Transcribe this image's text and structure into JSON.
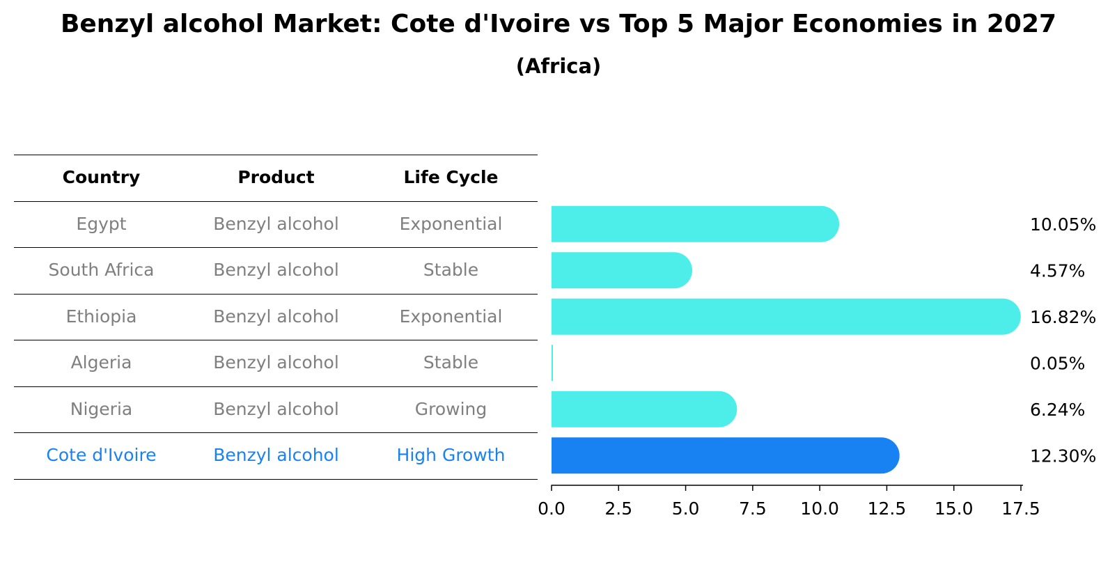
{
  "title": "Benzyl alcohol Market: Cote d'Ivoire vs Top 5 Major Economies in 2027",
  "subtitle": "(Africa)",
  "table": {
    "headers": [
      "Country",
      "Product",
      "Life Cycle"
    ],
    "rows": [
      {
        "country": "Egypt",
        "product": "Benzyl alcohol",
        "life_cycle": "Exponential",
        "highlight": false
      },
      {
        "country": "South Africa",
        "product": "Benzyl alcohol",
        "life_cycle": "Stable",
        "highlight": false
      },
      {
        "country": "Ethiopia",
        "product": "Benzyl alcohol",
        "life_cycle": "Exponential",
        "highlight": false
      },
      {
        "country": "Algeria",
        "product": "Benzyl alcohol",
        "life_cycle": "Stable",
        "highlight": false
      },
      {
        "country": "Nigeria",
        "product": "Benzyl alcohol",
        "life_cycle": "Growing",
        "highlight": false
      },
      {
        "country": "Cote d'Ivoire",
        "product": "Benzyl alcohol",
        "life_cycle": "High Growth",
        "highlight": true
      }
    ]
  },
  "colors": {
    "bar": "#4deeea",
    "highlight": "#1982f2",
    "muted_text": "#7f7f7f",
    "text": "#000000"
  },
  "chart_data": {
    "type": "bar",
    "orientation": "horizontal",
    "categories": [
      "Egypt",
      "South Africa",
      "Ethiopia",
      "Algeria",
      "Nigeria",
      "Cote d'Ivoire"
    ],
    "values": [
      10.05,
      4.57,
      16.82,
      0.05,
      6.24,
      12.3
    ],
    "value_labels": [
      "10.05%",
      "4.57%",
      "16.82%",
      "0.05%",
      "6.24%",
      "12.30%"
    ],
    "highlight_category": "Cote d'Ivoire",
    "xlim": [
      0,
      17.5
    ],
    "xticks": [
      0.0,
      2.5,
      5.0,
      7.5,
      10.0,
      12.5,
      15.0,
      17.5
    ],
    "xtick_labels": [
      "0.0",
      "2.5",
      "5.0",
      "7.5",
      "10.0",
      "12.5",
      "15.0",
      "17.5"
    ],
    "xlabel": "",
    "ylabel": ""
  }
}
